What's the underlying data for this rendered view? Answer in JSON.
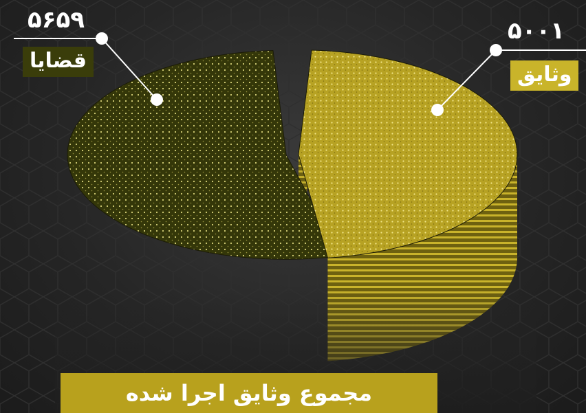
{
  "chart_data": {
    "type": "pie",
    "slices": [
      {
        "label": "قضایا",
        "value": 5659,
        "display_value": "۵۶۵۹",
        "color": "#3d400c"
      },
      {
        "label": "وثایق",
        "value": 5001,
        "display_value": "۵۰۰۱",
        "color": "#c2ac28"
      }
    ],
    "legend": "callouts"
  },
  "footer": {
    "text": "مجموع  وثایق اجرا شده"
  },
  "colors": {
    "background": "#262626",
    "banner": "#b8a11d",
    "dark_slice": "#3d400c",
    "light_slice": "#c2ac28"
  }
}
